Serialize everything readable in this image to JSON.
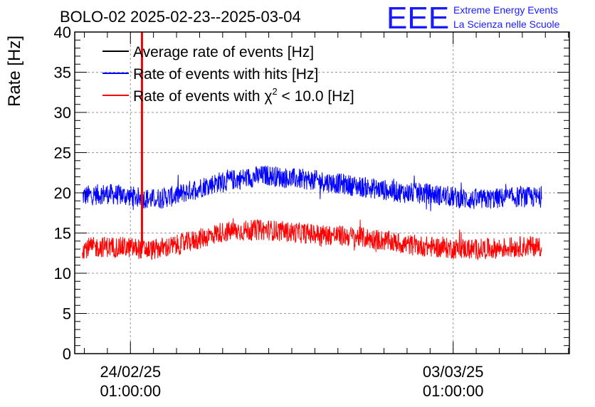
{
  "header": {
    "title": "BOLO-02 2025-02-23--2025-03-04",
    "logo_text": "EEE",
    "logo_line1": "Extreme Energy Events",
    "logo_line2": "La Scienza nelle Scuole"
  },
  "colors": {
    "average": "#000000",
    "hits": "#0000ff",
    "chi2": "#ff0000",
    "grid": "#9a9a9a",
    "logo": "#1a1aff"
  },
  "chart_data": {
    "type": "line",
    "title": "BOLO-02 2025-02-23--2025-03-04",
    "ylabel": "Rate [Hz]",
    "ylim": [
      0,
      40
    ],
    "yticks": [
      "0",
      "5",
      "10",
      "15",
      "20",
      "25",
      "30",
      "35",
      "40"
    ],
    "xlim": [
      "2025-02-22 20:00",
      "2025-03-05 13:30"
    ],
    "xticks": [
      {
        "x": "2025-02-24 01:00",
        "label_line1": "24/02/25",
        "label_line2": "01:00:00"
      },
      {
        "x": "2025-03-03 01:00",
        "label_line1": "03/03/25",
        "label_line2": "01:00:00"
      }
    ],
    "grid": true,
    "legend_position": "top-left",
    "legend": {
      "average": "Average rate of events [Hz]",
      "hits": "Rate of events with hits [Hz]",
      "chi2_prefix": "Rate of events with ",
      "chi2_symbol": "χ",
      "chi2_superscript": "2",
      "chi2_suffix": " < 10.0 [Hz]"
    },
    "series": [
      {
        "key": "hits",
        "name": "Rate of events with hits [Hz]",
        "x": [
          "2025-02-23 00:00",
          "2025-02-23 12:00",
          "2025-02-24 00:00",
          "2025-02-24 12:00",
          "2025-02-25 00:00",
          "2025-02-25 12:00",
          "2025-02-26 00:00",
          "2025-02-26 12:00",
          "2025-02-27 00:00",
          "2025-02-27 12:00",
          "2025-02-28 00:00",
          "2025-02-28 12:00",
          "2025-03-01 00:00",
          "2025-03-01 12:00",
          "2025-03-02 00:00",
          "2025-03-02 12:00",
          "2025-03-03 00:00",
          "2025-03-03 12:00",
          "2025-03-04 00:00",
          "2025-03-04 12:00",
          "2025-03-04 23:00"
        ],
        "values": [
          19.6,
          19.9,
          19.6,
          19.2,
          19.6,
          20.6,
          21.4,
          21.8,
          22.2,
          21.8,
          21.6,
          21.2,
          20.8,
          20.4,
          20.0,
          19.9,
          19.5,
          19.1,
          19.3,
          19.5,
          19.4
        ]
      },
      {
        "key": "chi2",
        "name": "Rate of events with χ2 < 10.0 [Hz]",
        "x": [
          "2025-02-23 00:00",
          "2025-02-23 12:00",
          "2025-02-24 00:00",
          "2025-02-24 12:00",
          "2025-02-25 00:00",
          "2025-02-25 12:00",
          "2025-02-26 00:00",
          "2025-02-26 12:00",
          "2025-02-27 00:00",
          "2025-02-27 12:00",
          "2025-02-28 00:00",
          "2025-02-28 12:00",
          "2025-03-01 00:00",
          "2025-03-01 12:00",
          "2025-03-02 00:00",
          "2025-03-02 12:00",
          "2025-03-03 00:00",
          "2025-03-03 12:00",
          "2025-03-04 00:00",
          "2025-03-04 12:00",
          "2025-03-04 23:00"
        ],
        "values": [
          13.1,
          13.3,
          13.2,
          12.9,
          13.4,
          14.2,
          15.1,
          15.3,
          15.4,
          15.1,
          14.9,
          14.7,
          14.5,
          14.1,
          13.6,
          13.3,
          13.1,
          13.0,
          13.1,
          13.3,
          13.4
        ],
        "spike": {
          "x": "2025-02-24 07:00",
          "value": 40
        }
      }
    ]
  }
}
